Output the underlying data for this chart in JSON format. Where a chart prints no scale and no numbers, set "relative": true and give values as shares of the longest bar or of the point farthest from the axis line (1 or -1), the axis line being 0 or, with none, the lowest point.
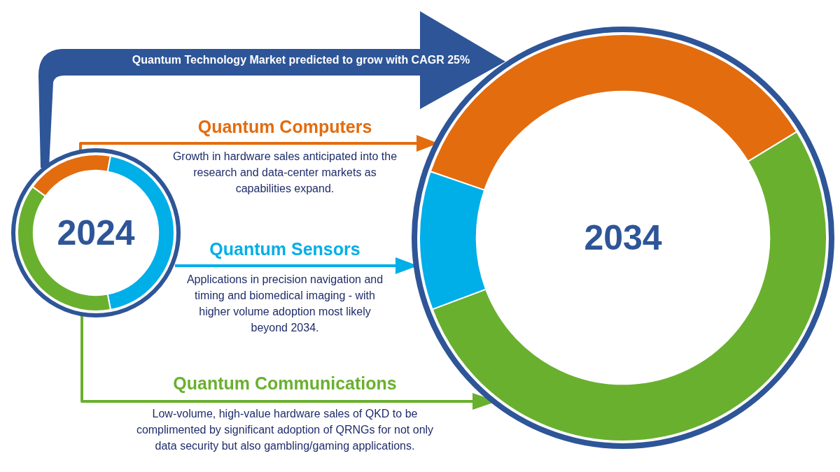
{
  "chart_data": [
    {
      "type": "donut",
      "title": "2024",
      "relative": true,
      "categories": [
        "Quantum Computers",
        "Quantum Sensors",
        "Quantum Communications"
      ],
      "values": [
        18,
        44,
        38
      ],
      "colors": [
        "#e36c0e",
        "#00aee8",
        "#6ab02f"
      ],
      "annotations": [
        "Quantum Technology Market predicted to grow with CAGR 25%",
        "Growth in hardware sales anticipated into the research and data-center markets as capabilities expand.",
        "Applications in precision navigation and timing and biomedical imaging - with higher volume adoption most likely beyond 2034.",
        "Low-volume, high-value hardware sales of QKD to be complimented by significant adoption of QRNGs for not only data security but also gambling/gaming applications."
      ]
    },
    {
      "type": "donut",
      "title": "2034",
      "relative": true,
      "categories": [
        null,
        null,
        null
      ],
      "values": [
        36,
        53,
        11
      ],
      "colors": [
        "#e36c0e",
        "#6ab02f",
        "#00aee8"
      ]
    }
  ]
}
